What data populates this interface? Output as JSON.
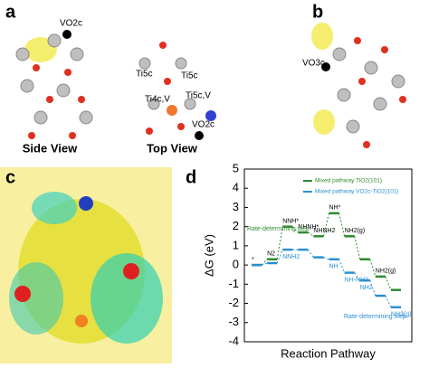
{
  "panels": {
    "a": "a",
    "b": "b",
    "c": "c",
    "d": "d",
    "side_view": "Side View",
    "top_view": "Top View",
    "a_vo2c_side": "VO2c",
    "a_ti5c_left": "Ti5c",
    "a_ti5c_right": "Ti5c",
    "a_ti4cv": "Ti4c,V",
    "a_ti5cv": "Ti5c,V",
    "a_vo2c_top": "VO2c",
    "b_vo3c": "VO3c"
  },
  "chart_data": {
    "type": "step",
    "ylabel": "ΔG (eV)",
    "xlabel": "Reaction Pathway",
    "ylim": [
      -4,
      5
    ],
    "yticks": [
      -4,
      -3,
      -2,
      -1,
      0,
      1,
      2,
      3,
      4,
      5
    ],
    "legend": "upper right",
    "annotations": [
      "Rate-determining step",
      "Rate-determining step"
    ],
    "series": [
      {
        "name": "Mixed pathway TiO2(101)",
        "color": "#2e8b2e",
        "values": [
          0,
          0.3,
          2.0,
          1.7,
          1.5,
          2.7,
          1.5,
          0.3,
          -0.6,
          -1.3
        ],
        "labels": [
          "*",
          "N2",
          "NNH*",
          "NHNH*",
          "NHNH2",
          "NH*",
          "NH2(g)",
          null,
          "NH2(g)",
          null
        ]
      },
      {
        "name": "Mixed pathway VO2c-TiO2(101)",
        "color": "#2b8fd0",
        "values": [
          0,
          0.1,
          0.8,
          0.8,
          0.4,
          0.3,
          -0.4,
          -0.8,
          -1.6,
          -2.2
        ],
        "labels": [
          null,
          null,
          "NNH2",
          null,
          null,
          "NH",
          "NH-NH2",
          "NH2",
          null,
          "NH3(g)"
        ]
      }
    ]
  }
}
